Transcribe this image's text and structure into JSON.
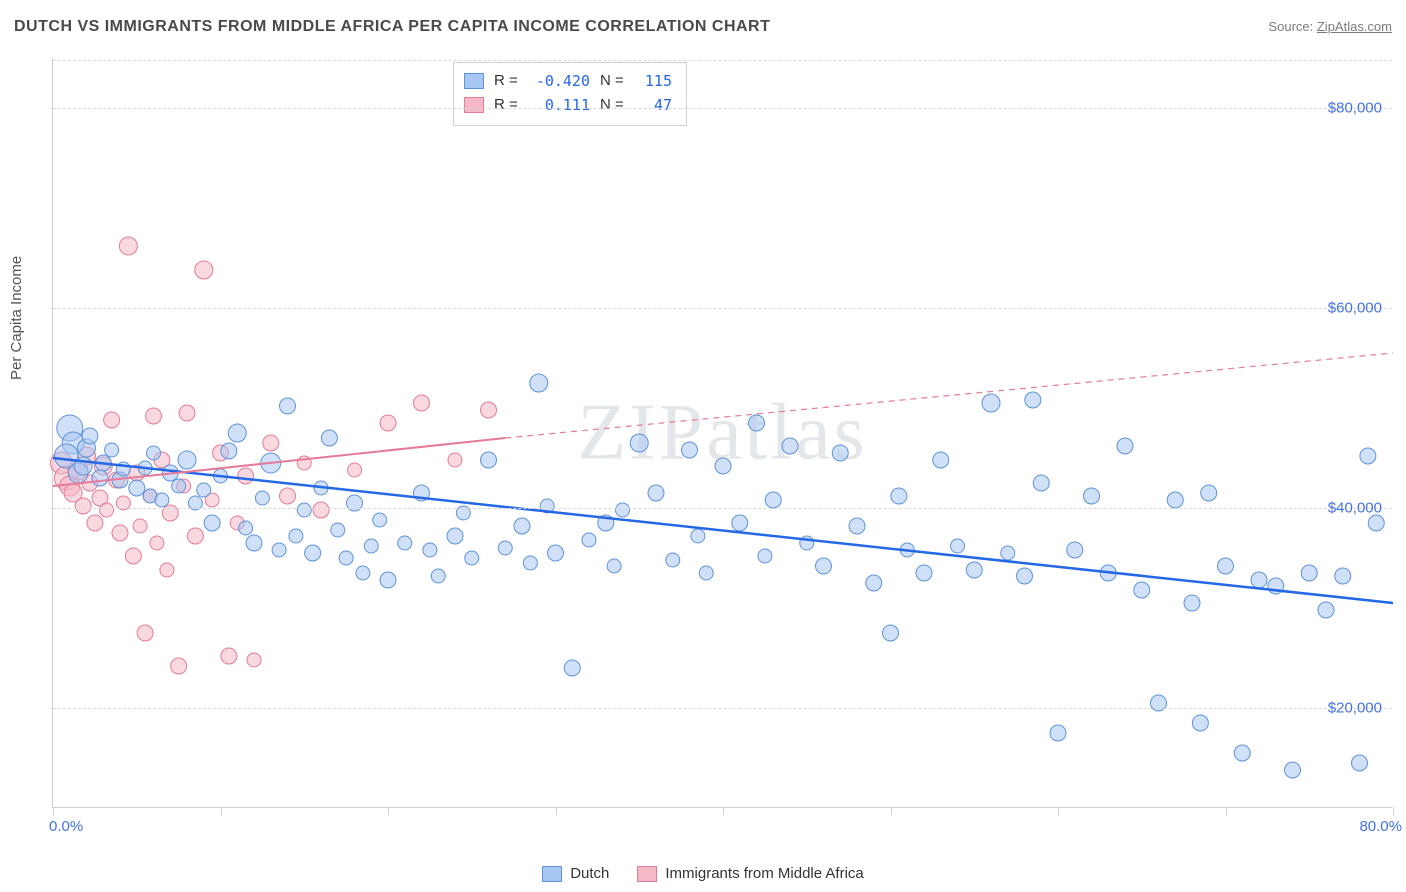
{
  "header": {
    "title": "DUTCH VS IMMIGRANTS FROM MIDDLE AFRICA PER CAPITA INCOME CORRELATION CHART",
    "source_prefix": "Source: ",
    "source_name": "ZipAtlas.com"
  },
  "watermark": "ZIPatlas",
  "chart": {
    "type": "scatter-with-regression",
    "ylabel": "Per Capita Income",
    "xlim": [
      0,
      80
    ],
    "ylim": [
      10000,
      85000
    ],
    "x_axis": {
      "min_label": "0.0%",
      "max_label": "80.0%",
      "tick_positions_pct": [
        0,
        10,
        20,
        30,
        40,
        50,
        60,
        70,
        80
      ]
    },
    "y_axis": {
      "grid_values": [
        20000,
        40000,
        60000,
        80000
      ],
      "tick_labels": [
        "$20,000",
        "$40,000",
        "$60,000",
        "$80,000"
      ]
    },
    "background_color": "#ffffff",
    "grid_color": "#d8d8d8",
    "axis_color": "#cfcfcf",
    "label_color": "#4472e4",
    "series": [
      {
        "name": "Dutch",
        "fill_color": "#a7c7f2",
        "stroke_color": "#5e93d9",
        "fill_opacity": 0.55,
        "line_color": "#2468e6",
        "line_width": 2.5,
        "R": "-0.420",
        "N": "115",
        "regression": {
          "x1": 0,
          "y1": 45000,
          "x2": 80,
          "y2": 30500,
          "dashed": false
        },
        "points": [
          {
            "x": 1,
            "y": 48000,
            "r": 13
          },
          {
            "x": 1.2,
            "y": 46500,
            "r": 11
          },
          {
            "x": 0.8,
            "y": 45200,
            "r": 12
          },
          {
            "x": 2,
            "y": 46000,
            "r": 9
          },
          {
            "x": 2.2,
            "y": 47200,
            "r": 8
          },
          {
            "x": 1.5,
            "y": 43500,
            "r": 10
          },
          {
            "x": 3,
            "y": 44500,
            "r": 8
          },
          {
            "x": 2.8,
            "y": 43000,
            "r": 8
          },
          {
            "x": 1.8,
            "y": 44200,
            "r": 9
          },
          {
            "x": 3.5,
            "y": 45800,
            "r": 7
          },
          {
            "x": 4,
            "y": 42800,
            "r": 8
          },
          {
            "x": 4.2,
            "y": 43900,
            "r": 7
          },
          {
            "x": 5,
            "y": 42000,
            "r": 8
          },
          {
            "x": 5.5,
            "y": 44000,
            "r": 7
          },
          {
            "x": 5.8,
            "y": 41200,
            "r": 7
          },
          {
            "x": 6,
            "y": 45500,
            "r": 7
          },
          {
            "x": 6.5,
            "y": 40800,
            "r": 7
          },
          {
            "x": 7,
            "y": 43500,
            "r": 8
          },
          {
            "x": 7.5,
            "y": 42200,
            "r": 7
          },
          {
            "x": 8,
            "y": 44800,
            "r": 9
          },
          {
            "x": 8.5,
            "y": 40500,
            "r": 7
          },
          {
            "x": 9,
            "y": 41800,
            "r": 7
          },
          {
            "x": 9.5,
            "y": 38500,
            "r": 8
          },
          {
            "x": 10,
            "y": 43200,
            "r": 7
          },
          {
            "x": 10.5,
            "y": 45700,
            "r": 8
          },
          {
            "x": 11,
            "y": 47500,
            "r": 9
          },
          {
            "x": 11.5,
            "y": 38000,
            "r": 7
          },
          {
            "x": 12,
            "y": 36500,
            "r": 8
          },
          {
            "x": 12.5,
            "y": 41000,
            "r": 7
          },
          {
            "x": 13,
            "y": 44500,
            "r": 10
          },
          {
            "x": 13.5,
            "y": 35800,
            "r": 7
          },
          {
            "x": 14,
            "y": 50200,
            "r": 8
          },
          {
            "x": 14.5,
            "y": 37200,
            "r": 7
          },
          {
            "x": 15,
            "y": 39800,
            "r": 7
          },
          {
            "x": 15.5,
            "y": 35500,
            "r": 8
          },
          {
            "x": 16,
            "y": 42000,
            "r": 7
          },
          {
            "x": 16.5,
            "y": 47000,
            "r": 8
          },
          {
            "x": 17,
            "y": 37800,
            "r": 7
          },
          {
            "x": 17.5,
            "y": 35000,
            "r": 7
          },
          {
            "x": 18,
            "y": 40500,
            "r": 8
          },
          {
            "x": 18.5,
            "y": 33500,
            "r": 7
          },
          {
            "x": 19,
            "y": 36200,
            "r": 7
          },
          {
            "x": 19.5,
            "y": 38800,
            "r": 7
          },
          {
            "x": 20,
            "y": 32800,
            "r": 8
          },
          {
            "x": 21,
            "y": 36500,
            "r": 7
          },
          {
            "x": 22,
            "y": 41500,
            "r": 8
          },
          {
            "x": 22.5,
            "y": 35800,
            "r": 7
          },
          {
            "x": 23,
            "y": 33200,
            "r": 7
          },
          {
            "x": 24,
            "y": 37200,
            "r": 8
          },
          {
            "x": 24.5,
            "y": 39500,
            "r": 7
          },
          {
            "x": 25,
            "y": 35000,
            "r": 7
          },
          {
            "x": 26,
            "y": 44800,
            "r": 8
          },
          {
            "x": 27,
            "y": 36000,
            "r": 7
          },
          {
            "x": 28,
            "y": 38200,
            "r": 8
          },
          {
            "x": 28.5,
            "y": 34500,
            "r": 7
          },
          {
            "x": 29,
            "y": 52500,
            "r": 9
          },
          {
            "x": 29.5,
            "y": 40200,
            "r": 7
          },
          {
            "x": 30,
            "y": 35500,
            "r": 8
          },
          {
            "x": 31,
            "y": 24000,
            "r": 8
          },
          {
            "x": 32,
            "y": 36800,
            "r": 7
          },
          {
            "x": 33,
            "y": 38500,
            "r": 8
          },
          {
            "x": 33.5,
            "y": 34200,
            "r": 7
          },
          {
            "x": 34,
            "y": 39800,
            "r": 7
          },
          {
            "x": 35,
            "y": 46500,
            "r": 9
          },
          {
            "x": 36,
            "y": 41500,
            "r": 8
          },
          {
            "x": 37,
            "y": 34800,
            "r": 7
          },
          {
            "x": 38,
            "y": 45800,
            "r": 8
          },
          {
            "x": 38.5,
            "y": 37200,
            "r": 7
          },
          {
            "x": 39,
            "y": 33500,
            "r": 7
          },
          {
            "x": 40,
            "y": 44200,
            "r": 8
          },
          {
            "x": 41,
            "y": 38500,
            "r": 8
          },
          {
            "x": 42,
            "y": 48500,
            "r": 8
          },
          {
            "x": 42.5,
            "y": 35200,
            "r": 7
          },
          {
            "x": 43,
            "y": 40800,
            "r": 8
          },
          {
            "x": 44,
            "y": 46200,
            "r": 8
          },
          {
            "x": 45,
            "y": 36500,
            "r": 7
          },
          {
            "x": 46,
            "y": 34200,
            "r": 8
          },
          {
            "x": 47,
            "y": 45500,
            "r": 8
          },
          {
            "x": 48,
            "y": 38200,
            "r": 8
          },
          {
            "x": 49,
            "y": 32500,
            "r": 8
          },
          {
            "x": 50,
            "y": 27500,
            "r": 8
          },
          {
            "x": 50.5,
            "y": 41200,
            "r": 8
          },
          {
            "x": 51,
            "y": 35800,
            "r": 7
          },
          {
            "x": 52,
            "y": 33500,
            "r": 8
          },
          {
            "x": 53,
            "y": 44800,
            "r": 8
          },
          {
            "x": 54,
            "y": 36200,
            "r": 7
          },
          {
            "x": 55,
            "y": 33800,
            "r": 8
          },
          {
            "x": 56,
            "y": 50500,
            "r": 9
          },
          {
            "x": 57,
            "y": 35500,
            "r": 7
          },
          {
            "x": 58,
            "y": 33200,
            "r": 8
          },
          {
            "x": 58.5,
            "y": 50800,
            "r": 8
          },
          {
            "x": 59,
            "y": 42500,
            "r": 8
          },
          {
            "x": 60,
            "y": 17500,
            "r": 8
          },
          {
            "x": 61,
            "y": 35800,
            "r": 8
          },
          {
            "x": 62,
            "y": 41200,
            "r": 8
          },
          {
            "x": 63,
            "y": 33500,
            "r": 8
          },
          {
            "x": 64,
            "y": 46200,
            "r": 8
          },
          {
            "x": 65,
            "y": 31800,
            "r": 8
          },
          {
            "x": 66,
            "y": 20500,
            "r": 8
          },
          {
            "x": 67,
            "y": 40800,
            "r": 8
          },
          {
            "x": 68,
            "y": 30500,
            "r": 8
          },
          {
            "x": 68.5,
            "y": 18500,
            "r": 8
          },
          {
            "x": 69,
            "y": 41500,
            "r": 8
          },
          {
            "x": 70,
            "y": 34200,
            "r": 8
          },
          {
            "x": 71,
            "y": 15500,
            "r": 8
          },
          {
            "x": 72,
            "y": 32800,
            "r": 8
          },
          {
            "x": 73,
            "y": 32200,
            "r": 8
          },
          {
            "x": 74,
            "y": 13800,
            "r": 8
          },
          {
            "x": 75,
            "y": 33500,
            "r": 8
          },
          {
            "x": 76,
            "y": 29800,
            "r": 8
          },
          {
            "x": 77,
            "y": 33200,
            "r": 8
          },
          {
            "x": 78,
            "y": 14500,
            "r": 8
          },
          {
            "x": 78.5,
            "y": 45200,
            "r": 8
          },
          {
            "x": 79,
            "y": 38500,
            "r": 8
          }
        ]
      },
      {
        "name": "Immigrants from Middle Africa",
        "fill_color": "#f5b8c7",
        "stroke_color": "#e47b98",
        "fill_opacity": 0.55,
        "line_color": "#e47b98",
        "line_width": 2,
        "R": "0.111",
        "N": "47",
        "regression": {
          "x1": 0,
          "y1": 42200,
          "x2": 27,
          "y2": 47000,
          "dashed": false
        },
        "regression_ext": {
          "x1": 27,
          "y1": 47000,
          "x2": 80,
          "y2": 55500,
          "dashed": true
        },
        "points": [
          {
            "x": 0.5,
            "y": 44500,
            "r": 11
          },
          {
            "x": 0.8,
            "y": 43000,
            "r": 12
          },
          {
            "x": 1,
            "y": 42200,
            "r": 10
          },
          {
            "x": 1.2,
            "y": 41500,
            "r": 9
          },
          {
            "x": 1.5,
            "y": 43800,
            "r": 10
          },
          {
            "x": 1.8,
            "y": 40200,
            "r": 8
          },
          {
            "x": 2,
            "y": 45200,
            "r": 9
          },
          {
            "x": 2.2,
            "y": 42500,
            "r": 8
          },
          {
            "x": 2.5,
            "y": 38500,
            "r": 8
          },
          {
            "x": 2.8,
            "y": 41000,
            "r": 8
          },
          {
            "x": 3,
            "y": 44200,
            "r": 9
          },
          {
            "x": 3.2,
            "y": 39800,
            "r": 7
          },
          {
            "x": 3.5,
            "y": 48800,
            "r": 8
          },
          {
            "x": 3.8,
            "y": 42800,
            "r": 8
          },
          {
            "x": 4,
            "y": 37500,
            "r": 8
          },
          {
            "x": 4.2,
            "y": 40500,
            "r": 7
          },
          {
            "x": 4.5,
            "y": 66200,
            "r": 9
          },
          {
            "x": 4.8,
            "y": 35200,
            "r": 8
          },
          {
            "x": 5,
            "y": 43500,
            "r": 8
          },
          {
            "x": 5.2,
            "y": 38200,
            "r": 7
          },
          {
            "x": 5.5,
            "y": 27500,
            "r": 8
          },
          {
            "x": 5.8,
            "y": 41200,
            "r": 7
          },
          {
            "x": 6,
            "y": 49200,
            "r": 8
          },
          {
            "x": 6.2,
            "y": 36500,
            "r": 7
          },
          {
            "x": 6.5,
            "y": 44800,
            "r": 8
          },
          {
            "x": 6.8,
            "y": 33800,
            "r": 7
          },
          {
            "x": 7,
            "y": 39500,
            "r": 8
          },
          {
            "x": 7.5,
            "y": 24200,
            "r": 8
          },
          {
            "x": 7.8,
            "y": 42200,
            "r": 7
          },
          {
            "x": 8,
            "y": 49500,
            "r": 8
          },
          {
            "x": 8.5,
            "y": 37200,
            "r": 8
          },
          {
            "x": 9,
            "y": 63800,
            "r": 9
          },
          {
            "x": 9.5,
            "y": 40800,
            "r": 7
          },
          {
            "x": 10,
            "y": 45500,
            "r": 8
          },
          {
            "x": 10.5,
            "y": 25200,
            "r": 8
          },
          {
            "x": 11,
            "y": 38500,
            "r": 7
          },
          {
            "x": 11.5,
            "y": 43200,
            "r": 8
          },
          {
            "x": 12,
            "y": 24800,
            "r": 7
          },
          {
            "x": 13,
            "y": 46500,
            "r": 8
          },
          {
            "x": 14,
            "y": 41200,
            "r": 8
          },
          {
            "x": 15,
            "y": 44500,
            "r": 7
          },
          {
            "x": 16,
            "y": 39800,
            "r": 8
          },
          {
            "x": 18,
            "y": 43800,
            "r": 7
          },
          {
            "x": 20,
            "y": 48500,
            "r": 8
          },
          {
            "x": 22,
            "y": 50500,
            "r": 8
          },
          {
            "x": 24,
            "y": 44800,
            "r": 7
          },
          {
            "x": 26,
            "y": 49800,
            "r": 8
          }
        ]
      }
    ]
  },
  "stats_box": {
    "R_label": "R =",
    "N_label": "N ="
  },
  "legend": {
    "series1": "Dutch",
    "series2": "Immigrants from Middle Africa"
  }
}
